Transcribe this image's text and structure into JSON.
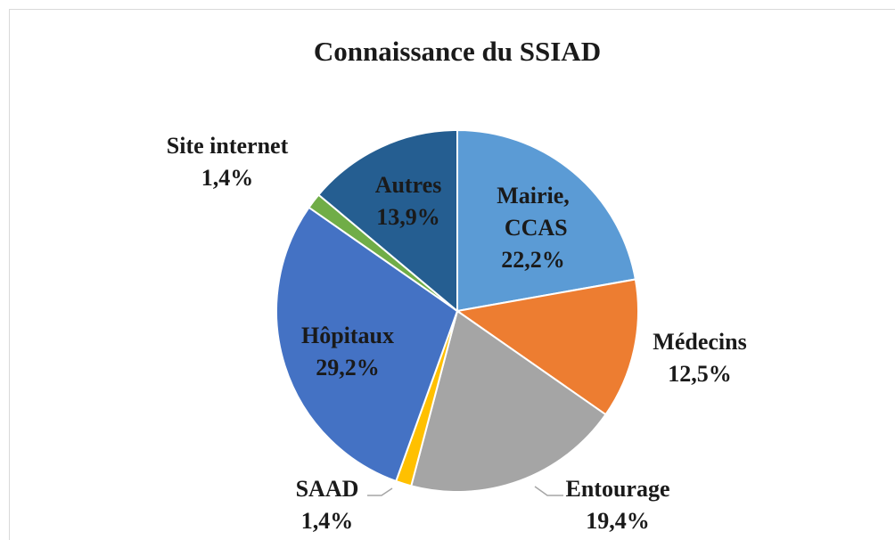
{
  "chart_data": {
    "type": "pie",
    "title": "Connaissance du SSIAD",
    "categories": [
      "Mairie, CCAS",
      "Médecins",
      "Entourage",
      "SAAD",
      "Hôpitaux",
      "Site internet",
      "Autres"
    ],
    "values": [
      22.2,
      12.5,
      19.4,
      1.4,
      29.2,
      1.4,
      13.9
    ],
    "value_labels": [
      "22,2%",
      "12,5%",
      "19,4%",
      "1,4%",
      "29,2%",
      "1,4%",
      "13,9%"
    ],
    "colors": [
      "#5b9bd5",
      "#ed7d31",
      "#a5a5a5",
      "#ffc000",
      "#4472c4",
      "#70ad47",
      "#255e91"
    ]
  }
}
